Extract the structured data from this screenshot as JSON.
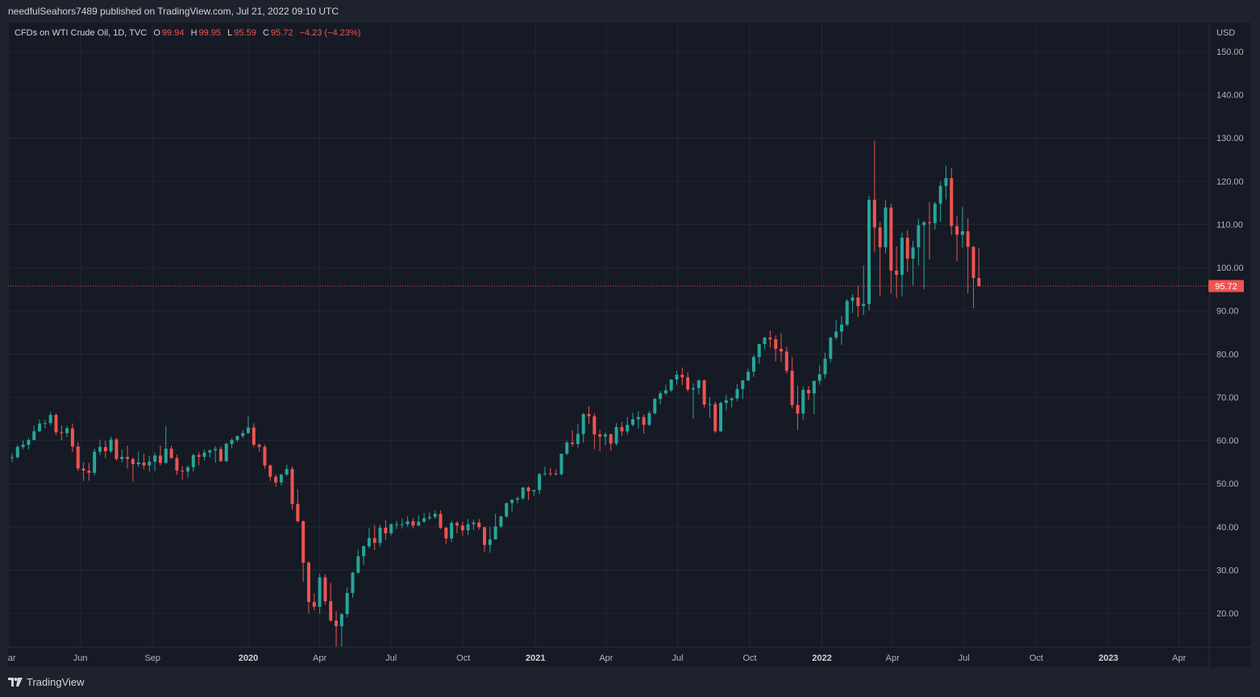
{
  "header": {
    "published": "needfulSeahors7489 published on TradingView.com, Jul 21, 2022 09:10 UTC"
  },
  "legend": {
    "symbol": "CFDs on WTI Crude Oil, 1D, TVC",
    "o_label": "O",
    "o": "99.94",
    "h_label": "H",
    "h": "99.95",
    "l_label": "L",
    "l": "95.59",
    "c_label": "C",
    "c": "95.72",
    "change": "−4.23 (−4.23%)"
  },
  "footer": {
    "brand": "TradingView"
  },
  "colors": {
    "up": "#26a69a",
    "down": "#ef5350",
    "background": "#161a25",
    "grid": "#232734",
    "text": "#d1d4dc"
  },
  "chart_data": {
    "type": "candlestick",
    "title": "CFDs on WTI Crude Oil, 1D, TVC",
    "currency_label": "USD",
    "last_price": 95.72,
    "last_price_label": "95.72",
    "ylim": [
      12,
      155
    ],
    "y_ticks": [
      "20.00",
      "30.00",
      "40.00",
      "50.00",
      "60.00",
      "70.00",
      "80.00",
      "90.00",
      "100.00",
      "110.00",
      "120.00",
      "130.00",
      "140.00",
      "150.00"
    ],
    "x_ticks": [
      {
        "label": "Mar",
        "date": "2019-03-01",
        "major": false
      },
      {
        "label": "Jun",
        "date": "2019-06-01",
        "major": false
      },
      {
        "label": "Sep",
        "date": "2019-09-01",
        "major": false
      },
      {
        "label": "2020",
        "date": "2020-01-01",
        "major": true
      },
      {
        "label": "Apr",
        "date": "2020-04-01",
        "major": false
      },
      {
        "label": "Jul",
        "date": "2020-07-01",
        "major": false
      },
      {
        "label": "Oct",
        "date": "2020-10-01",
        "major": false
      },
      {
        "label": "2021",
        "date": "2021-01-01",
        "major": true
      },
      {
        "label": "Apr",
        "date": "2021-04-01",
        "major": false
      },
      {
        "label": "Jul",
        "date": "2021-07-01",
        "major": false
      },
      {
        "label": "Oct",
        "date": "2021-10-01",
        "major": false
      },
      {
        "label": "2022",
        "date": "2022-01-01",
        "major": true
      },
      {
        "label": "Apr",
        "date": "2022-04-01",
        "major": false
      },
      {
        "label": "Jul",
        "date": "2022-07-01",
        "major": false
      },
      {
        "label": "Oct",
        "date": "2022-10-01",
        "major": false
      },
      {
        "label": "2023",
        "date": "2023-01-01",
        "major": true
      },
      {
        "label": "Apr",
        "date": "2023-04-01",
        "major": false
      }
    ],
    "series_note": "weekly approximation of daily candles",
    "first_week": "2019-03-04",
    "interval_days": 7,
    "ohlc": [
      [
        56.0,
        57.0,
        55.0,
        56.1
      ],
      [
        56.1,
        58.9,
        55.8,
        58.5
      ],
      [
        58.5,
        60.0,
        58.0,
        59.0
      ],
      [
        59.0,
        60.6,
        57.9,
        60.1
      ],
      [
        60.1,
        63.4,
        60.0,
        62.1
      ],
      [
        62.1,
        64.8,
        61.9,
        63.9
      ],
      [
        63.9,
        64.8,
        62.8,
        64.0
      ],
      [
        64.0,
        66.6,
        63.5,
        65.9
      ],
      [
        65.9,
        66.3,
        61.2,
        61.9
      ],
      [
        61.9,
        63.5,
        60.0,
        61.7
      ],
      [
        61.7,
        63.4,
        60.8,
        62.8
      ],
      [
        62.8,
        63.9,
        57.3,
        58.6
      ],
      [
        58.6,
        59.6,
        52.9,
        53.5
      ],
      [
        53.5,
        54.9,
        50.6,
        53.0
      ],
      [
        53.0,
        54.8,
        50.7,
        52.5
      ],
      [
        52.5,
        58.1,
        51.9,
        57.4
      ],
      [
        57.4,
        60.2,
        56.6,
        58.5
      ],
      [
        58.5,
        59.9,
        55.9,
        57.5
      ],
      [
        57.5,
        60.9,
        57.1,
        60.2
      ],
      [
        60.2,
        60.6,
        55.3,
        55.7
      ],
      [
        55.7,
        57.9,
        54.9,
        56.2
      ],
      [
        56.2,
        58.8,
        53.5,
        55.7
      ],
      [
        55.7,
        56.0,
        50.5,
        54.5
      ],
      [
        54.5,
        57.4,
        53.9,
        54.9
      ],
      [
        54.9,
        56.9,
        53.3,
        54.2
      ],
      [
        54.2,
        56.4,
        52.8,
        55.1
      ],
      [
        55.1,
        57.1,
        52.9,
        56.5
      ],
      [
        56.5,
        58.8,
        54.2,
        54.8
      ],
      [
        54.8,
        63.3,
        54.6,
        58.1
      ],
      [
        58.1,
        58.8,
        55.8,
        55.9
      ],
      [
        55.9,
        56.7,
        52.0,
        53.0
      ],
      [
        53.0,
        54.0,
        50.9,
        52.8
      ],
      [
        52.8,
        54.2,
        51.4,
        53.8
      ],
      [
        53.8,
        56.9,
        52.8,
        56.6
      ],
      [
        56.6,
        57.3,
        54.2,
        56.2
      ],
      [
        56.2,
        57.9,
        55.4,
        57.2
      ],
      [
        57.2,
        57.9,
        56.0,
        57.7
      ],
      [
        57.7,
        58.7,
        54.8,
        58.0
      ],
      [
        58.0,
        58.6,
        55.0,
        55.2
      ],
      [
        55.2,
        59.5,
        55.0,
        59.2
      ],
      [
        59.2,
        60.5,
        58.1,
        60.1
      ],
      [
        60.1,
        61.2,
        59.6,
        61.0
      ],
      [
        61.0,
        62.4,
        60.5,
        61.7
      ],
      [
        61.7,
        65.6,
        61.5,
        63.0
      ],
      [
        63.0,
        64.0,
        58.5,
        59.0
      ],
      [
        59.0,
        59.3,
        57.4,
        58.5
      ],
      [
        58.5,
        59.0,
        53.5,
        54.2
      ],
      [
        54.2,
        54.5,
        50.6,
        51.6
      ],
      [
        51.6,
        52.1,
        49.3,
        50.3
      ],
      [
        50.3,
        52.3,
        49.6,
        52.1
      ],
      [
        52.1,
        54.4,
        51.7,
        53.4
      ],
      [
        53.4,
        54.0,
        44.0,
        45.3
      ],
      [
        45.3,
        48.7,
        41.0,
        41.3
      ],
      [
        41.3,
        41.5,
        27.3,
        31.7
      ],
      [
        31.7,
        32.0,
        20.0,
        22.6
      ],
      [
        22.6,
        24.6,
        20.7,
        21.5
      ],
      [
        21.5,
        29.1,
        19.9,
        28.3
      ],
      [
        28.3,
        29.0,
        22.0,
        22.8
      ],
      [
        22.8,
        27.0,
        18.0,
        18.3
      ],
      [
        18.3,
        20.5,
        6.0,
        17.0
      ],
      [
        17.0,
        20.0,
        10.0,
        19.8
      ],
      [
        19.8,
        26.0,
        19.0,
        24.7
      ],
      [
        24.7,
        29.6,
        23.6,
        29.4
      ],
      [
        29.4,
        34.7,
        29.2,
        33.2
      ],
      [
        33.2,
        35.7,
        31.2,
        35.5
      ],
      [
        35.5,
        39.7,
        35.0,
        37.4
      ],
      [
        37.4,
        40.4,
        34.6,
        36.3
      ],
      [
        36.3,
        40.5,
        35.4,
        39.8
      ],
      [
        39.8,
        41.6,
        37.0,
        38.5
      ],
      [
        38.5,
        40.8,
        38.0,
        40.6
      ],
      [
        40.6,
        41.4,
        39.5,
        40.6
      ],
      [
        40.6,
        41.9,
        39.6,
        40.6
      ],
      [
        40.6,
        42.5,
        40.0,
        41.3
      ],
      [
        41.3,
        42.0,
        39.6,
        40.3
      ],
      [
        40.3,
        42.7,
        40.2,
        41.2
      ],
      [
        41.2,
        43.2,
        40.8,
        42.0
      ],
      [
        42.0,
        43.3,
        41.5,
        42.3
      ],
      [
        42.3,
        43.8,
        41.8,
        43.0
      ],
      [
        43.0,
        43.8,
        39.5,
        39.8
      ],
      [
        39.8,
        40.0,
        36.0,
        37.3
      ],
      [
        37.3,
        41.4,
        36.4,
        40.9
      ],
      [
        40.9,
        41.3,
        38.5,
        40.3
      ],
      [
        40.3,
        41.2,
        38.0,
        39.2
      ],
      [
        39.2,
        41.8,
        38.1,
        40.6
      ],
      [
        40.6,
        41.7,
        39.3,
        41.0
      ],
      [
        41.0,
        41.8,
        39.3,
        39.9
      ],
      [
        39.9,
        40.0,
        34.2,
        35.8
      ],
      [
        35.8,
        40.0,
        34.0,
        37.1
      ],
      [
        37.1,
        43.0,
        37.0,
        40.1
      ],
      [
        40.1,
        42.6,
        39.6,
        42.4
      ],
      [
        42.4,
        45.6,
        42.0,
        45.5
      ],
      [
        45.5,
        46.2,
        43.6,
        46.3
      ],
      [
        46.3,
        47.0,
        45.4,
        46.6
      ],
      [
        46.6,
        49.2,
        46.2,
        49.1
      ],
      [
        49.1,
        49.4,
        46.2,
        48.2
      ],
      [
        48.2,
        48.6,
        47.2,
        48.5
      ],
      [
        48.5,
        52.5,
        47.5,
        52.2
      ],
      [
        52.2,
        53.9,
        51.8,
        52.4
      ],
      [
        52.4,
        53.6,
        51.8,
        52.3
      ],
      [
        52.3,
        53.3,
        51.9,
        52.2
      ],
      [
        52.2,
        57.0,
        51.9,
        56.9
      ],
      [
        56.9,
        59.9,
        56.6,
        59.5
      ],
      [
        59.5,
        62.3,
        58.6,
        59.2
      ],
      [
        59.2,
        63.8,
        58.3,
        61.5
      ],
      [
        61.5,
        66.4,
        59.5,
        66.1
      ],
      [
        66.1,
        67.9,
        63.8,
        65.6
      ],
      [
        65.6,
        66.4,
        57.9,
        61.4
      ],
      [
        61.4,
        62.4,
        57.5,
        60.9
      ],
      [
        60.9,
        61.8,
        58.9,
        61.4
      ],
      [
        61.4,
        61.6,
        57.6,
        59.3
      ],
      [
        59.3,
        64.0,
        58.8,
        63.1
      ],
      [
        63.1,
        64.3,
        61.1,
        62.1
      ],
      [
        62.1,
        65.4,
        61.3,
        63.6
      ],
      [
        63.6,
        66.4,
        63.2,
        64.9
      ],
      [
        64.9,
        66.7,
        62.8,
        65.4
      ],
      [
        65.4,
        66.0,
        61.6,
        63.6
      ],
      [
        63.6,
        66.8,
        63.3,
        66.3
      ],
      [
        66.3,
        69.8,
        66.0,
        69.6
      ],
      [
        69.6,
        71.4,
        68.3,
        70.9
      ],
      [
        70.9,
        72.9,
        70.5,
        71.6
      ],
      [
        71.6,
        74.2,
        71.2,
        74.1
      ],
      [
        74.1,
        76.1,
        72.9,
        75.2
      ],
      [
        75.2,
        76.9,
        72.8,
        74.6
      ],
      [
        74.6,
        75.8,
        71.3,
        71.8
      ],
      [
        71.8,
        73.2,
        65.0,
        72.1
      ],
      [
        72.1,
        74.1,
        70.6,
        73.9
      ],
      [
        73.9,
        74.1,
        67.6,
        68.3
      ],
      [
        68.3,
        70.0,
        65.2,
        68.4
      ],
      [
        68.4,
        69.0,
        61.7,
        62.1
      ],
      [
        62.1,
        69.0,
        62.0,
        68.7
      ],
      [
        68.7,
        70.6,
        67.0,
        69.3
      ],
      [
        69.3,
        70.0,
        67.6,
        69.7
      ],
      [
        69.7,
        73.0,
        69.1,
        71.9
      ],
      [
        71.9,
        74.0,
        69.6,
        73.9
      ],
      [
        73.9,
        76.6,
        73.7,
        75.9
      ],
      [
        75.9,
        79.8,
        74.7,
        79.3
      ],
      [
        79.3,
        82.3,
        77.8,
        82.3
      ],
      [
        82.3,
        84.0,
        81.0,
        83.8
      ],
      [
        83.8,
        85.4,
        81.5,
        83.4
      ],
      [
        83.4,
        84.3,
        78.3,
        81.2
      ],
      [
        81.2,
        84.9,
        78.1,
        80.6
      ],
      [
        80.6,
        81.7,
        75.5,
        76.1
      ],
      [
        76.1,
        79.3,
        67.4,
        68.2
      ],
      [
        68.2,
        72.7,
        62.4,
        66.2
      ],
      [
        66.2,
        72.4,
        64.8,
        71.7
      ],
      [
        71.7,
        72.6,
        69.3,
        70.9
      ],
      [
        70.9,
        73.8,
        66.1,
        73.8
      ],
      [
        73.8,
        77.4,
        72.9,
        75.3
      ],
      [
        75.3,
        80.3,
        74.3,
        78.9
      ],
      [
        78.9,
        84.0,
        78.0,
        83.8
      ],
      [
        83.8,
        87.9,
        83.3,
        85.2
      ],
      [
        85.2,
        88.8,
        82.1,
        86.8
      ],
      [
        86.8,
        92.7,
        86.4,
        92.3
      ],
      [
        92.3,
        93.8,
        89.5,
        93.1
      ],
      [
        93.1,
        95.8,
        88.6,
        91.1
      ],
      [
        91.1,
        100.5,
        89.0,
        91.6
      ],
      [
        91.6,
        116.6,
        90.1,
        115.7
      ],
      [
        115.7,
        129.4,
        103.5,
        109.3
      ],
      [
        109.3,
        110.6,
        93.5,
        104.7
      ],
      [
        104.7,
        115.6,
        103.2,
        113.9
      ],
      [
        113.9,
        114.8,
        94.0,
        99.3
      ],
      [
        99.3,
        104.9,
        93.0,
        98.3
      ],
      [
        98.3,
        108.1,
        93.4,
        106.9
      ],
      [
        106.9,
        108.7,
        99.0,
        102.1
      ],
      [
        102.1,
        106.2,
        95.9,
        104.7
      ],
      [
        104.7,
        111.3,
        100.4,
        109.8
      ],
      [
        109.8,
        110.8,
        95.0,
        110.5
      ],
      [
        110.5,
        115.2,
        101.9,
        110.3
      ],
      [
        110.3,
        115.2,
        108.8,
        114.8
      ],
      [
        114.8,
        119.9,
        110.6,
        118.9
      ],
      [
        118.9,
        123.6,
        115.8,
        120.7
      ],
      [
        120.7,
        123.0,
        107.5,
        109.6
      ],
      [
        109.6,
        112.0,
        101.5,
        107.6
      ],
      [
        107.6,
        114.0,
        104.6,
        108.4
      ],
      [
        108.4,
        111.4,
        94.0,
        104.8
      ],
      [
        104.8,
        105.0,
        90.6,
        97.6
      ],
      [
        97.6,
        104.5,
        95.6,
        95.7
      ]
    ]
  }
}
